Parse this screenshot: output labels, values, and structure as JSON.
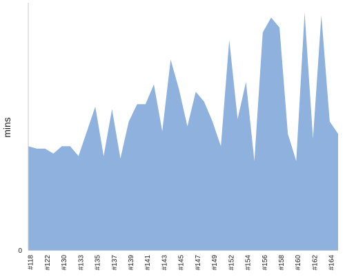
{
  "chart_data": {
    "type": "area",
    "title": "",
    "xlabel": "",
    "ylabel": "mins",
    "ylim": [
      0,
      100
    ],
    "y_ticks": [
      0
    ],
    "grid": false,
    "legend": "none",
    "colors": {
      "fill": "#8fb1dd",
      "axis": "#c8c8c8",
      "text": "#222222"
    },
    "x_ticks": [
      "#118",
      "#122",
      "#130",
      "#133",
      "#135",
      "#137",
      "#139",
      "#141",
      "#143",
      "#145",
      "#147",
      "#149",
      "#152",
      "#154",
      "#156",
      "#158",
      "#160",
      "#162",
      "#164"
    ],
    "series": [
      {
        "values": [
          42,
          41,
          41,
          39,
          42,
          42,
          38,
          48,
          58,
          38,
          57,
          37,
          52,
          59,
          59,
          67,
          48,
          77,
          65,
          50,
          64,
          60,
          52,
          42,
          85,
          53,
          68,
          36,
          88,
          94,
          90,
          47,
          36,
          96,
          45,
          95,
          52,
          47
        ]
      }
    ]
  }
}
